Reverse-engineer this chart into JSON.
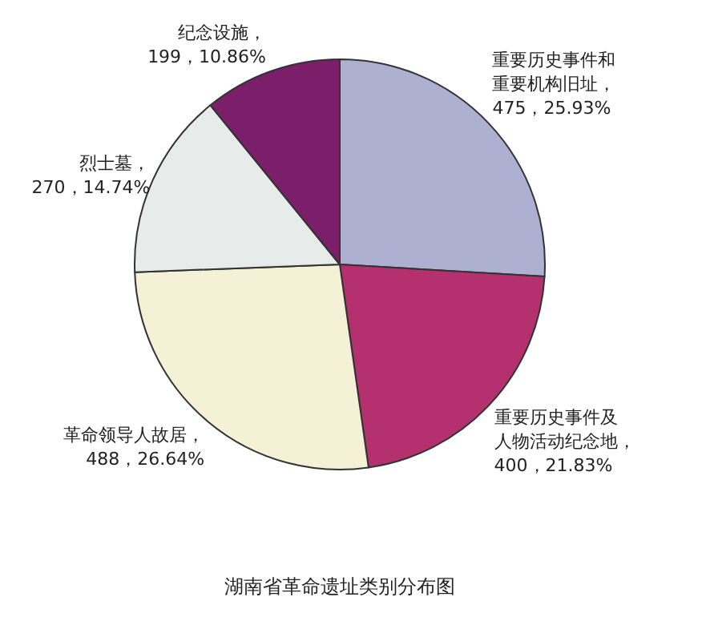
{
  "chart_data": {
    "type": "pie",
    "title": "湖南省革命遗址类别分布图",
    "categories": [
      "重要历史事件和重要机构旧址",
      "重要历史事件及人物活动纪念地",
      "革命领导人故居",
      "烈士墓",
      "纪念设施"
    ],
    "values": [
      475,
      400,
      488,
      270,
      199
    ],
    "value_labels": [
      "，475，25.93%",
      "，400，21.83%",
      "，488，26.64%",
      "，270，14.74%",
      "，199，10.86%"
    ],
    "colors": [
      "#aeb0d2",
      "#b5306e",
      "#f4f1d6",
      "#e7ebea",
      "#7b1f6b"
    ]
  }
}
